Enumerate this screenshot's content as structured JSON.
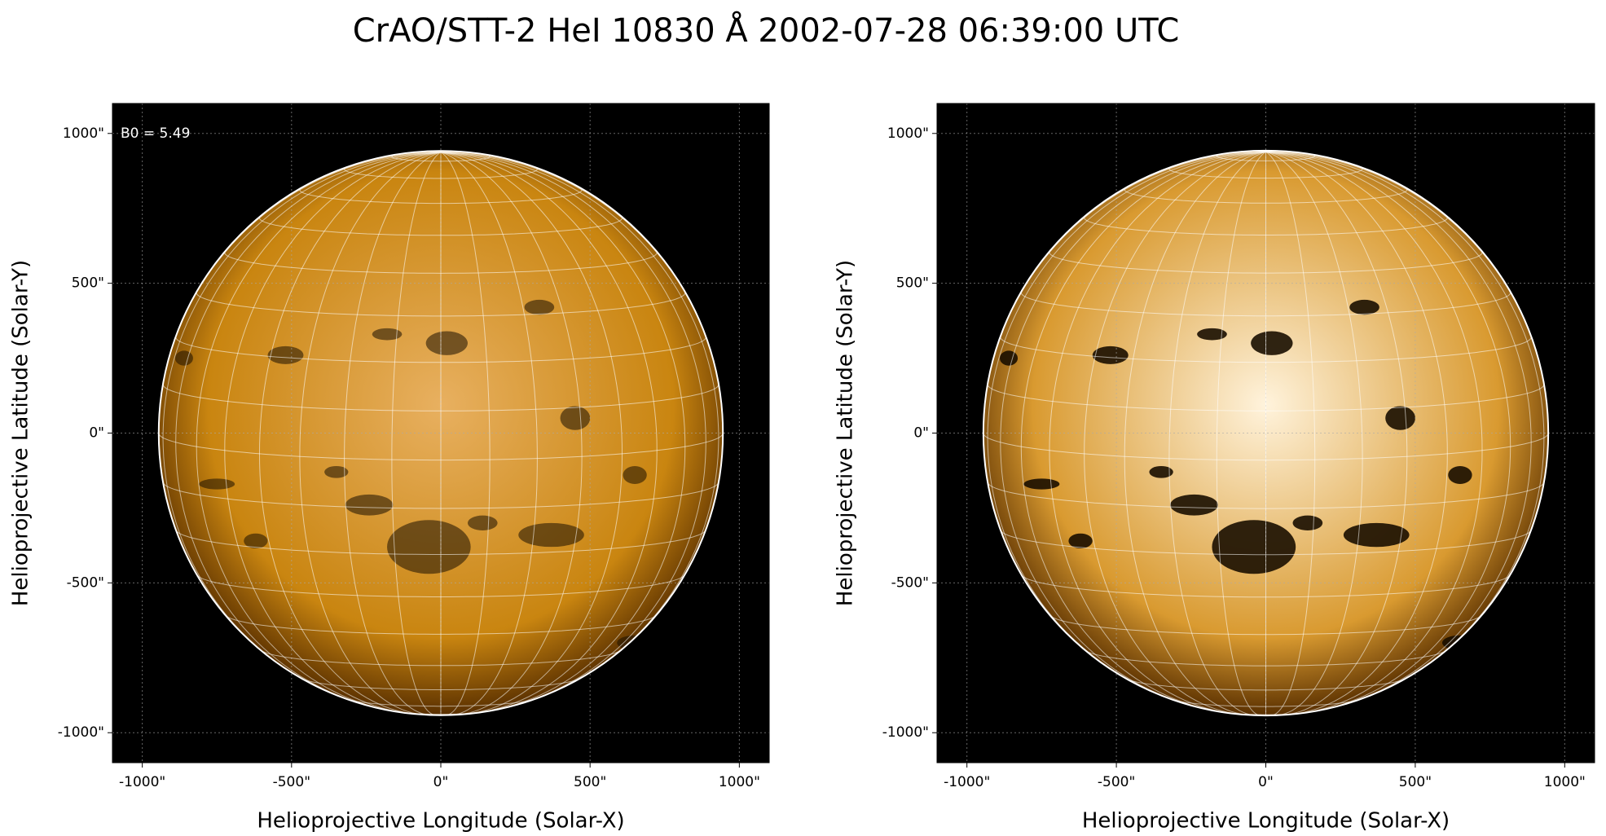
{
  "title": "CrAO/STT-2 HeI 10830 Å 2002-07-28 06:39:00 UTC",
  "chart_data": [
    {
      "type": "image",
      "xlabel": "Helioprojective Longitude (Solar-X)",
      "ylabel": "Helioprojective Latitude (Solar-Y)",
      "xlim": [
        -1100,
        1100
      ],
      "ylim": [
        -1100,
        1100
      ],
      "xticks": [
        {
          "value": -1000,
          "label": "-1000\""
        },
        {
          "value": -500,
          "label": "-500\""
        },
        {
          "value": 0,
          "label": "0\""
        },
        {
          "value": 500,
          "label": "500\""
        },
        {
          "value": 1000,
          "label": "1000\""
        }
      ],
      "yticks": [
        {
          "value": -1000,
          "label": "-1000\""
        },
        {
          "value": -500,
          "label": "-500\""
        },
        {
          "value": 0,
          "label": "0\""
        },
        {
          "value": 500,
          "label": "500\""
        },
        {
          "value": 1000,
          "label": "1000\""
        }
      ],
      "annotation": {
        "value": 5.49,
        "label": "B0 = 5.49"
      },
      "solar_radius": 945,
      "grid": true,
      "color": "#c98510",
      "highlight": "#e8b060"
    },
    {
      "type": "image",
      "xlabel": "Helioprojective Longitude (Solar-X)",
      "ylabel": "Helioprojective Latitude (Solar-Y)",
      "xlim": [
        -1100,
        1100
      ],
      "ylim": [
        -1100,
        1100
      ],
      "xticks": [
        {
          "value": -1000,
          "label": "-1000\""
        },
        {
          "value": -500,
          "label": "-500\""
        },
        {
          "value": 0,
          "label": "0\""
        },
        {
          "value": 500,
          "label": "500\""
        },
        {
          "value": 1000,
          "label": "1000\""
        }
      ],
      "yticks": [
        {
          "value": -1000,
          "label": "-1000\""
        },
        {
          "value": -500,
          "label": "-500\""
        },
        {
          "value": 0,
          "label": "0\""
        },
        {
          "value": 500,
          "label": "500\""
        },
        {
          "value": 1000,
          "label": "1000\""
        }
      ],
      "solar_radius": 945,
      "grid": true,
      "color": "#d99a30",
      "highlight": "#fff3dc"
    }
  ]
}
